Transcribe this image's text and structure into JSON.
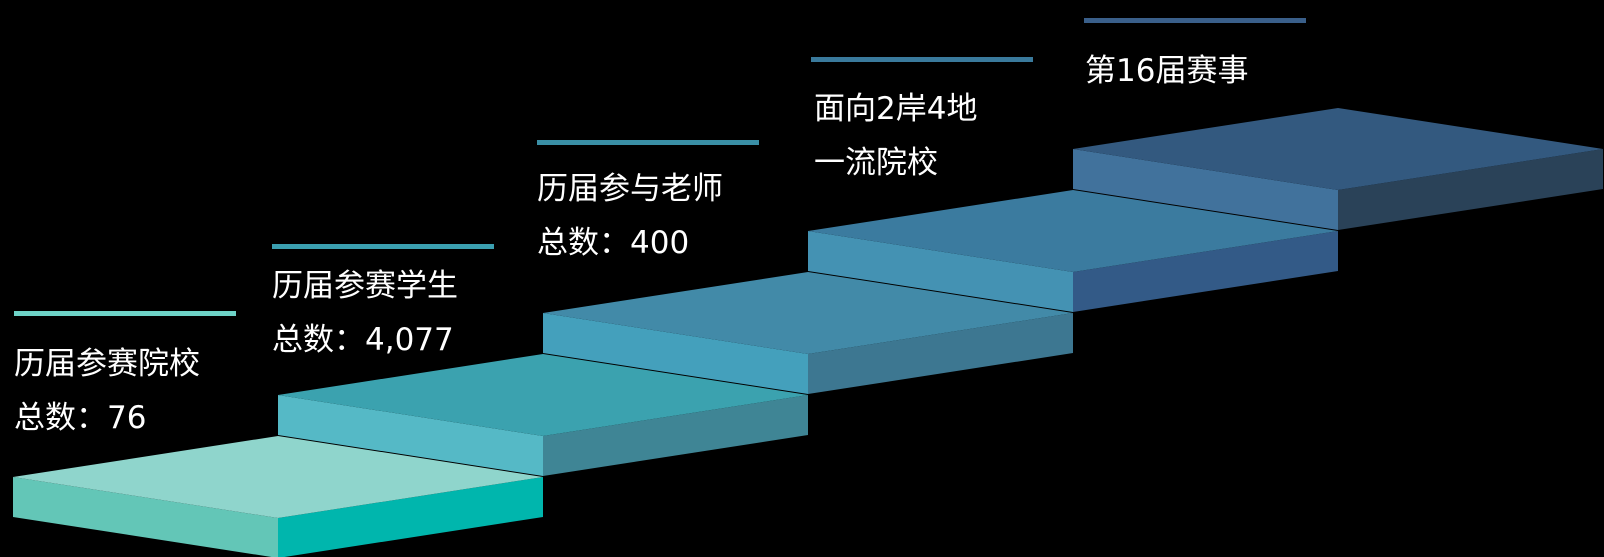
{
  "steps": [
    {
      "line1": "历届参赛院校",
      "line2": "总数：76",
      "top_color": "#8fd5cc",
      "front_color": "#63c6b7",
      "side_color": "#00b6ad",
      "accent_color": "#6ed3c7"
    },
    {
      "line1": "历届参赛学生",
      "line2": "总数：4,077",
      "top_color": "#3ba2af",
      "front_color": "#55b9c6",
      "side_color": "#3f8595",
      "accent_color": "#3b9fb0"
    },
    {
      "line1": "历届参与老师",
      "line2": "总数：400",
      "top_color": "#428aa8",
      "front_color": "#44a0bc",
      "side_color": "#3d7791",
      "accent_color": "#3a8fa6"
    },
    {
      "line1": "面向2岸4地",
      "line2": "一流院校",
      "top_color": "#3b7b9f",
      "front_color": "#4492b3",
      "side_color": "#335a87",
      "accent_color": "#3a7a9c"
    },
    {
      "line1": "第16届赛事",
      "line2": "",
      "top_color": "#33597f",
      "front_color": "#41729c",
      "side_color": "#2a4258",
      "accent_color": "#3a5f8a"
    }
  ]
}
